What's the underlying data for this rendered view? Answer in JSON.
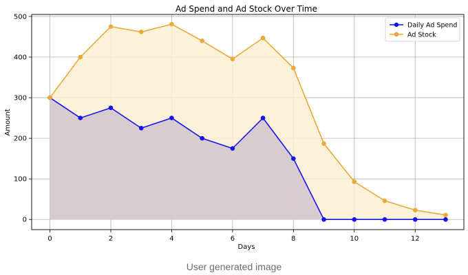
{
  "caption": "User generated image",
  "chart_data": {
    "type": "line",
    "title": "Ad Spend and Ad Stock Over Time",
    "xlabel": "Days",
    "ylabel": "Amount",
    "x": [
      0,
      1,
      2,
      3,
      4,
      5,
      6,
      7,
      8,
      9,
      10,
      11,
      12,
      13
    ],
    "xlim": [
      -0.6,
      13.6
    ],
    "ylim": [
      -25,
      505
    ],
    "xticks": [
      0,
      2,
      4,
      6,
      8,
      10,
      12
    ],
    "yticks": [
      0,
      100,
      200,
      300,
      400,
      500
    ],
    "grid": true,
    "legend_position": "top-right",
    "series": [
      {
        "name": "Daily Ad Spend",
        "color": "#1515e8",
        "fill": "#d2c5cf",
        "values": [
          300,
          250,
          275,
          225,
          250,
          200,
          175,
          250,
          150,
          0,
          0,
          0,
          0,
          0
        ]
      },
      {
        "name": "Ad Stock",
        "color": "#eba93a",
        "fill": "#fcefd2",
        "values": [
          300,
          400,
          475,
          462,
          481,
          440,
          395,
          447,
          373,
          187,
          93,
          46,
          23,
          11
        ]
      }
    ]
  }
}
